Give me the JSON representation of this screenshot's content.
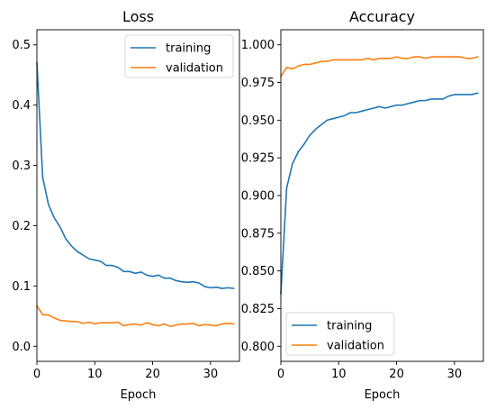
{
  "colors": {
    "training": "#1f77b4",
    "validation": "#ff7f0e"
  },
  "chart_data": [
    {
      "type": "line",
      "title": "Loss",
      "xlabel": "Epoch",
      "ylabel": "",
      "xlim": [
        0,
        35
      ],
      "ylim": [
        -0.025,
        0.525
      ],
      "xticks": [
        0,
        10,
        20,
        30
      ],
      "yticks": [
        0.0,
        0.1,
        0.2,
        0.3,
        0.4,
        0.5
      ],
      "ytick_labels": [
        "0.0",
        "0.1",
        "0.2",
        "0.3",
        "0.4",
        "0.5"
      ],
      "legend": "upper right",
      "grid": false,
      "x": [
        0,
        1,
        2,
        3,
        4,
        5,
        6,
        7,
        8,
        9,
        10,
        11,
        12,
        13,
        14,
        15,
        16,
        17,
        18,
        19,
        20,
        21,
        22,
        23,
        24,
        25,
        26,
        27,
        28,
        29,
        30,
        31,
        32,
        33,
        34
      ],
      "series": [
        {
          "name": "training",
          "values": [
            0.47,
            0.28,
            0.235,
            0.213,
            0.198,
            0.178,
            0.166,
            0.157,
            0.151,
            0.145,
            0.143,
            0.141,
            0.134,
            0.134,
            0.131,
            0.124,
            0.124,
            0.121,
            0.123,
            0.118,
            0.116,
            0.118,
            0.113,
            0.113,
            0.109,
            0.107,
            0.106,
            0.107,
            0.105,
            0.099,
            0.097,
            0.098,
            0.096,
            0.097,
            0.096
          ]
        },
        {
          "name": "validation",
          "values": [
            0.067,
            0.052,
            0.052,
            0.047,
            0.043,
            0.042,
            0.041,
            0.041,
            0.038,
            0.04,
            0.037,
            0.039,
            0.039,
            0.039,
            0.04,
            0.034,
            0.036,
            0.037,
            0.035,
            0.039,
            0.036,
            0.034,
            0.037,
            0.033,
            0.035,
            0.037,
            0.037,
            0.038,
            0.034,
            0.036,
            0.035,
            0.034,
            0.037,
            0.038,
            0.037
          ]
        }
      ]
    },
    {
      "type": "line",
      "title": "Accuracy",
      "xlabel": "Epoch",
      "ylabel": "",
      "xlim": [
        0,
        35
      ],
      "ylim": [
        0.79,
        1.01
      ],
      "xticks": [
        0,
        10,
        20,
        30
      ],
      "yticks": [
        0.8,
        0.825,
        0.85,
        0.875,
        0.9,
        0.925,
        0.95,
        0.975,
        1.0
      ],
      "ytick_labels": [
        "0.800",
        "0.825",
        "0.850",
        "0.875",
        "0.900",
        "0.925",
        "0.950",
        "0.975",
        "1.000"
      ],
      "legend": "lower left",
      "grid": false,
      "x": [
        0,
        1,
        2,
        3,
        4,
        5,
        6,
        7,
        8,
        9,
        10,
        11,
        12,
        13,
        14,
        15,
        16,
        17,
        18,
        19,
        20,
        21,
        22,
        23,
        24,
        25,
        26,
        27,
        28,
        29,
        30,
        31,
        32,
        33,
        34
      ],
      "series": [
        {
          "name": "training",
          "values": [
            0.835,
            0.905,
            0.921,
            0.929,
            0.934,
            0.94,
            0.944,
            0.947,
            0.95,
            0.951,
            0.952,
            0.953,
            0.955,
            0.955,
            0.956,
            0.957,
            0.958,
            0.959,
            0.958,
            0.959,
            0.96,
            0.96,
            0.961,
            0.962,
            0.963,
            0.963,
            0.964,
            0.964,
            0.964,
            0.966,
            0.967,
            0.967,
            0.967,
            0.967,
            0.968
          ]
        },
        {
          "name": "validation",
          "values": [
            0.979,
            0.985,
            0.984,
            0.986,
            0.987,
            0.987,
            0.988,
            0.989,
            0.989,
            0.99,
            0.99,
            0.99,
            0.99,
            0.99,
            0.99,
            0.991,
            0.99,
            0.991,
            0.991,
            0.991,
            0.992,
            0.991,
            0.991,
            0.992,
            0.992,
            0.991,
            0.992,
            0.992,
            0.992,
            0.992,
            0.992,
            0.992,
            0.991,
            0.991,
            0.992
          ]
        }
      ]
    }
  ]
}
